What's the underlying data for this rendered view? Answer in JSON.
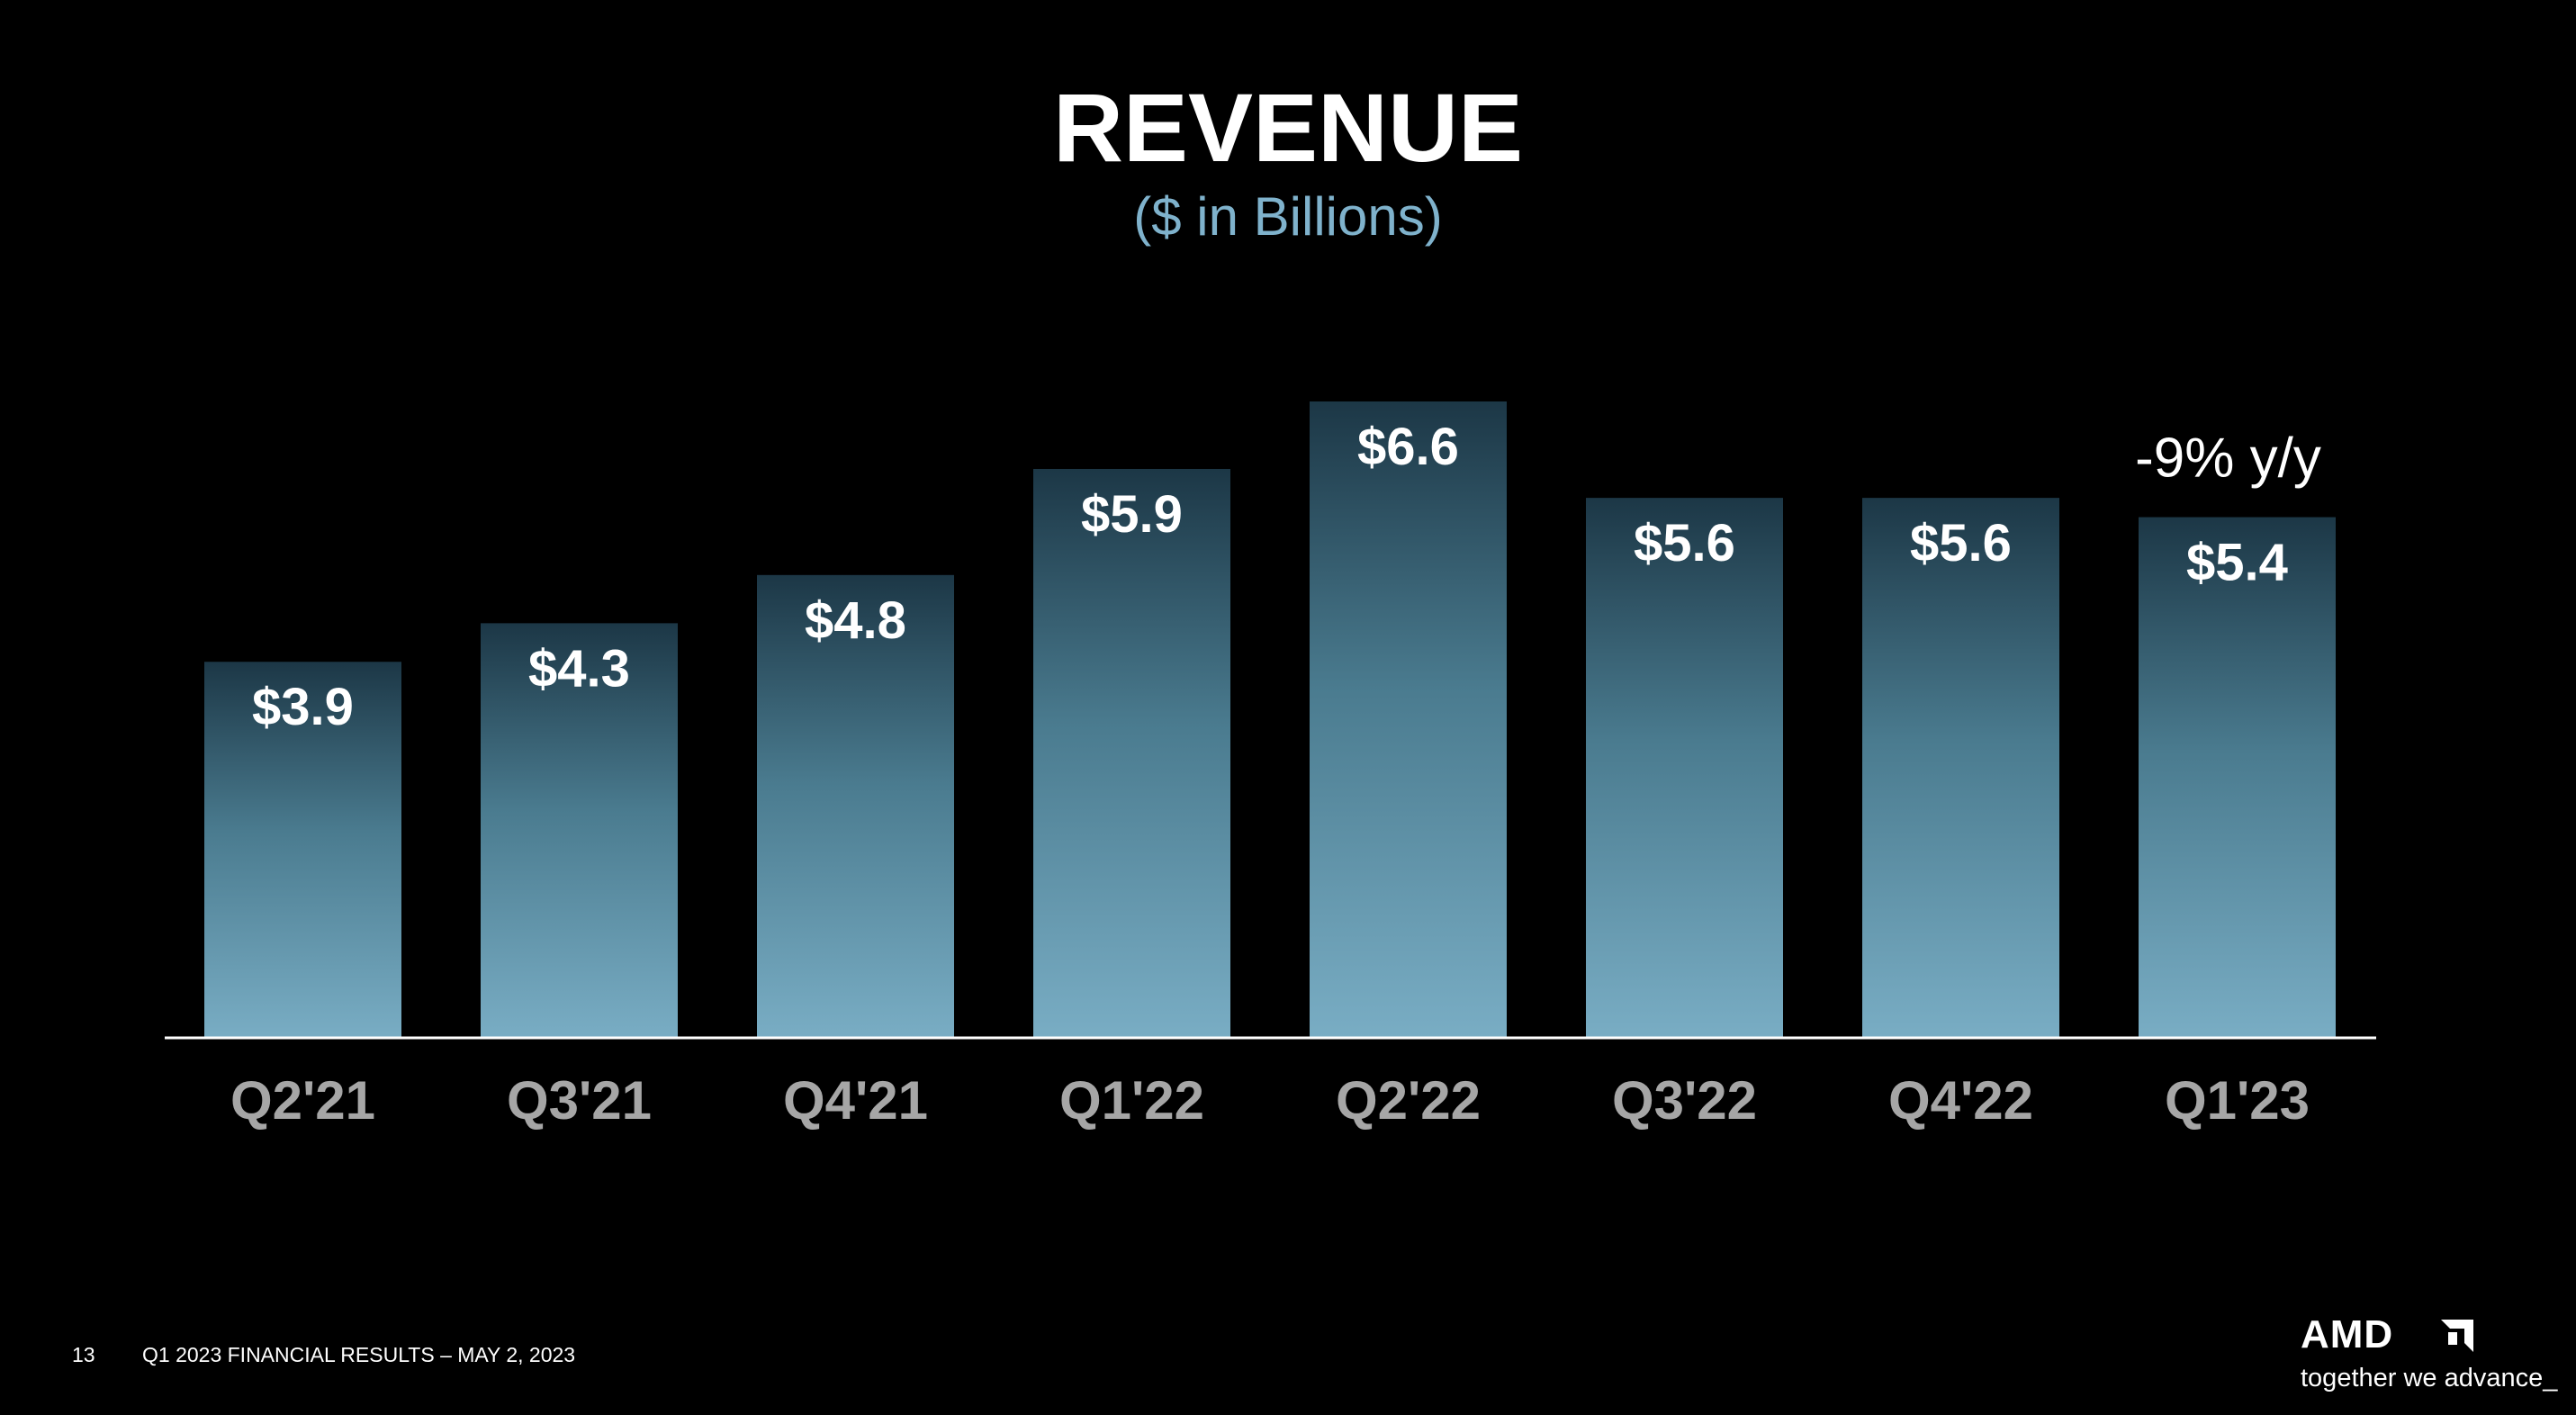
{
  "slide": {
    "title": "REVENUE",
    "subtitle": "($ in Billions)",
    "page_number": "13",
    "footer_text": "Q1 2023 FINANCIAL RESULTS – MAY 2, 2023"
  },
  "brand": {
    "wordmark": "AMD",
    "tagline": "together we advance_",
    "logo_icon": "amd-arrow-icon"
  },
  "colors": {
    "background": "#000000",
    "bar_top": "#1c3746",
    "bar_bottom": "#79adc4",
    "subtitle": "#7fb2cc",
    "axis_label": "#a6a6a6",
    "value_label": "#ffffff",
    "baseline": "#ffffff"
  },
  "chart_data": {
    "type": "bar",
    "title": "REVENUE",
    "subtitle": "($ in Billions)",
    "categories": [
      "Q2'21",
      "Q3'21",
      "Q4'21",
      "Q1'22",
      "Q2'22",
      "Q3'22",
      "Q4'22",
      "Q1'23"
    ],
    "values": [
      3.9,
      4.3,
      4.8,
      5.9,
      6.6,
      5.6,
      5.6,
      5.4
    ],
    "value_labels": [
      "$3.9",
      "$4.3",
      "$4.8",
      "$5.9",
      "$6.6",
      "$5.6",
      "$5.6",
      "$5.4"
    ],
    "annotations": [
      {
        "category": "Q1'23",
        "text": "-9% y/y"
      }
    ],
    "xlabel": "",
    "ylabel": "",
    "ylim": [
      0,
      6.6
    ],
    "grid": false,
    "legend": "none"
  }
}
